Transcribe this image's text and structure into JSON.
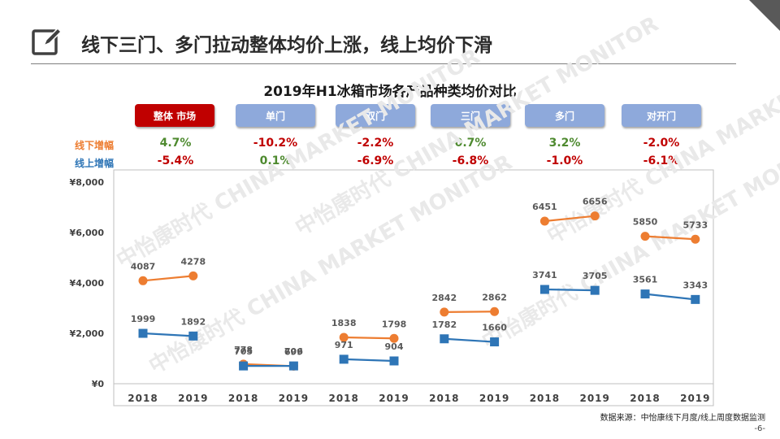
{
  "title": "线下三门、多门拉动整体均价上涨，线上均价下滑",
  "buttons": [
    "整体 市场",
    "单门",
    "双门",
    "三门",
    "多门",
    "对开门"
  ],
  "growth": {
    "offline_label": "线下增幅",
    "online_label": "线上增幅",
    "offline": [
      "4.7%",
      "-10.2%",
      "-2.2%",
      "0.7%",
      "3.2%",
      "-2.0%"
    ],
    "online": [
      "-5.4%",
      "0.1%",
      "-6.9%",
      "-6.8%",
      "-1.0%",
      "-6.1%"
    ]
  },
  "watermark": "中怡康时代 CHINA MARKET MONITOR",
  "source": "数据来源：中怡康线下月度/线上周度数据监测",
  "page_number": "-6-",
  "colors": {
    "offline": "#ed7d31",
    "online": "#2e75b6",
    "primary_button": "#c00000",
    "category_button": "#8ea9db"
  },
  "chart_data": {
    "type": "line",
    "title": "2019年H1冰箱市场各产品种类均价对比",
    "groups": [
      "整体 市场",
      "单门",
      "双门",
      "三门",
      "多门",
      "对开门"
    ],
    "x_tick_labels": [
      "2018",
      "2019"
    ],
    "y_ticks": [
      "¥0",
      "¥2,000",
      "¥4,000",
      "¥6,000",
      "¥8,000"
    ],
    "ylim": [
      0,
      8000
    ],
    "series": [
      {
        "name": "线下",
        "values": [
          [
            4087,
            4278
          ],
          [
            778,
            699
          ],
          [
            1838,
            1798
          ],
          [
            2842,
            2862
          ],
          [
            6451,
            6656
          ],
          [
            5850,
            5733
          ]
        ]
      },
      {
        "name": "线上",
        "values": [
          [
            1999,
            1892
          ],
          [
            705,
            706
          ],
          [
            971,
            904
          ],
          [
            1782,
            1660
          ],
          [
            3741,
            3705
          ],
          [
            3561,
            3343
          ]
        ]
      }
    ]
  }
}
